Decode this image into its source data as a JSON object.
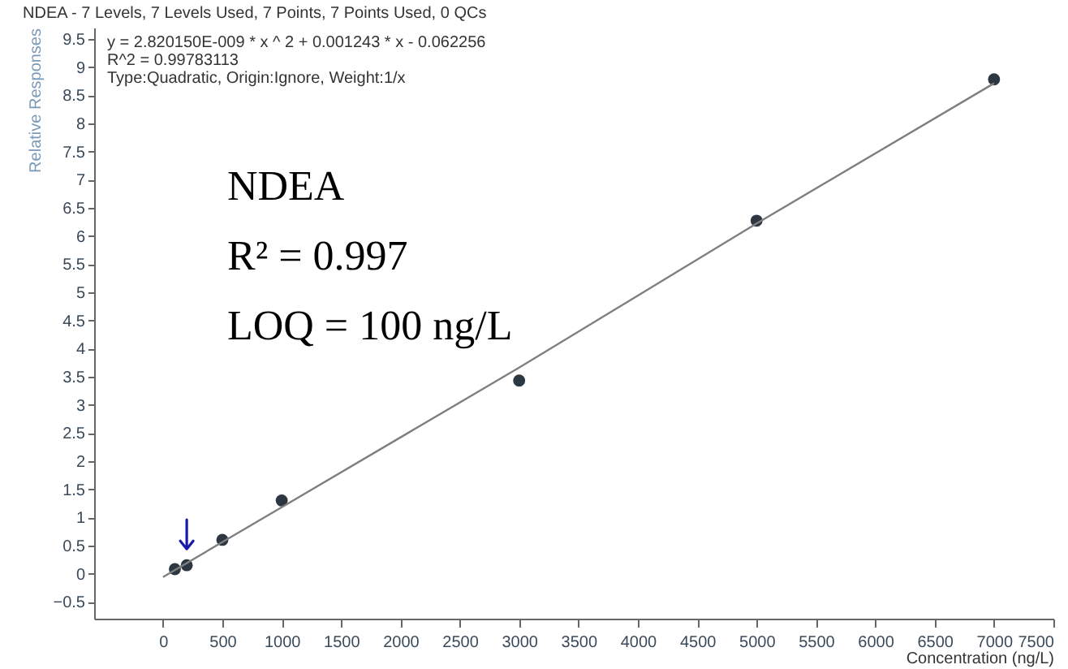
{
  "chart_data": {
    "type": "scatter",
    "title": "NDEA - 7 Levels, 7 Levels Used, 7 Points, 7 Points Used, 0 QCs",
    "xlabel": "Concentration (ng/L)",
    "ylabel": "Relative Responses",
    "annotations": [
      "y = 2.820150E-009 * x ^ 2  + 0.001243 * x  - 0.062256",
      "R^2 = 0.99783113",
      "Type:Quadratic, Origin:Ignore, Weight:1/x",
      "NDEA",
      "R² = 0.997",
      "LOQ = 100 ng/L"
    ],
    "series": [
      {
        "color": "#2d3741",
        "x": [
          100,
          200,
          500,
          1000,
          3000,
          5000,
          7000
        ],
        "values": [
          0.08,
          0.15,
          0.6,
          1.3,
          3.43,
          6.27,
          8.78
        ]
      },
      {
        "type": "line",
        "marker": "none",
        "color": "#7f7f7f",
        "x": [
          0,
          1000,
          3000,
          5000,
          7000
        ],
        "values": [
          -0.06,
          1.18,
          3.66,
          6.22,
          8.71
        ]
      }
    ],
    "marker": "circle",
    "xlim": [
      -580,
      7500
    ],
    "xticks": [
      0,
      500,
      1000,
      1500,
      2000,
      2500,
      3000,
      3500,
      4000,
      4500,
      5000,
      5500,
      6000,
      6500,
      7000,
      7500
    ],
    "ylim": [
      -0.8,
      9.7
    ],
    "yticks": [
      -0.5,
      0,
      0.5,
      1,
      1.5,
      2,
      2.5,
      3,
      3.5,
      4,
      4.5,
      5,
      5.5,
      6,
      6.5,
      7,
      7.5,
      8,
      8.5,
      9,
      9.5
    ],
    "grid": false
  }
}
